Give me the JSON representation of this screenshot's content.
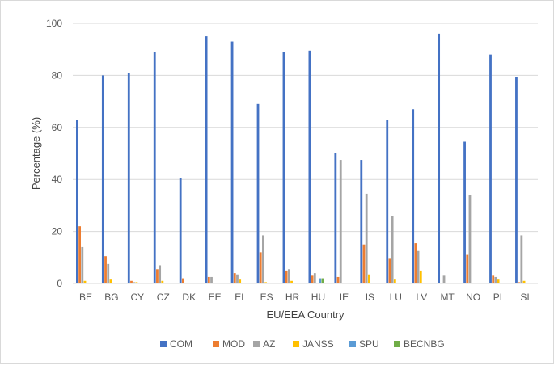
{
  "chart_data": {
    "type": "bar",
    "title": "",
    "xlabel": "EU/EEA Country",
    "ylabel": "Percentage (%)",
    "ylim": [
      0,
      100
    ],
    "yticks": [
      0,
      20,
      40,
      60,
      80,
      100
    ],
    "grid": "horizontal",
    "legend_position": "bottom",
    "categories": [
      "BE",
      "BG",
      "CY",
      "CZ",
      "DK",
      "EE",
      "EL",
      "ES",
      "HR",
      "HU",
      "IE",
      "IS",
      "LU",
      "LV",
      "MT",
      "NO",
      "PL",
      "SI"
    ],
    "series": [
      {
        "name": "COM",
        "color": "#4472C4",
        "values": [
          63,
          80,
          81,
          89,
          40.5,
          95,
          93,
          69,
          89,
          89.5,
          50,
          47.5,
          63,
          67,
          96,
          54.5,
          88,
          79.5
        ]
      },
      {
        "name": "MOD",
        "color": "#ED7D31",
        "values": [
          22,
          10.5,
          1,
          5.5,
          2,
          2.5,
          4,
          12,
          5,
          3,
          2.5,
          15,
          9.5,
          15.5,
          0,
          11,
          3,
          0.5
        ]
      },
      {
        "name": "AZ",
        "color": "#A5A5A5",
        "values": [
          14,
          7.5,
          0.5,
          7,
          0,
          2.5,
          3.5,
          18.5,
          5.5,
          4,
          47.5,
          34.5,
          26,
          12.5,
          3,
          34,
          2.5,
          18.5
        ]
      },
      {
        "name": "JANSS",
        "color": "#FFC000",
        "values": [
          1,
          1.5,
          0.5,
          1,
          0,
          0,
          1.5,
          0.5,
          1,
          0,
          0,
          3.5,
          1.5,
          5,
          0,
          0,
          1.5,
          1
        ]
      },
      {
        "name": "SPU",
        "color": "#5B9BD5",
        "values": [
          0,
          0,
          0,
          0,
          0,
          0,
          0,
          0,
          0,
          2,
          0,
          0,
          0,
          0,
          0,
          0,
          0,
          0
        ]
      },
      {
        "name": "BECNBG",
        "color": "#70AD47",
        "values": [
          0,
          0,
          0,
          0,
          0,
          0,
          0,
          0,
          0,
          2,
          0,
          0,
          0,
          0,
          0,
          0,
          0,
          0
        ]
      }
    ]
  }
}
